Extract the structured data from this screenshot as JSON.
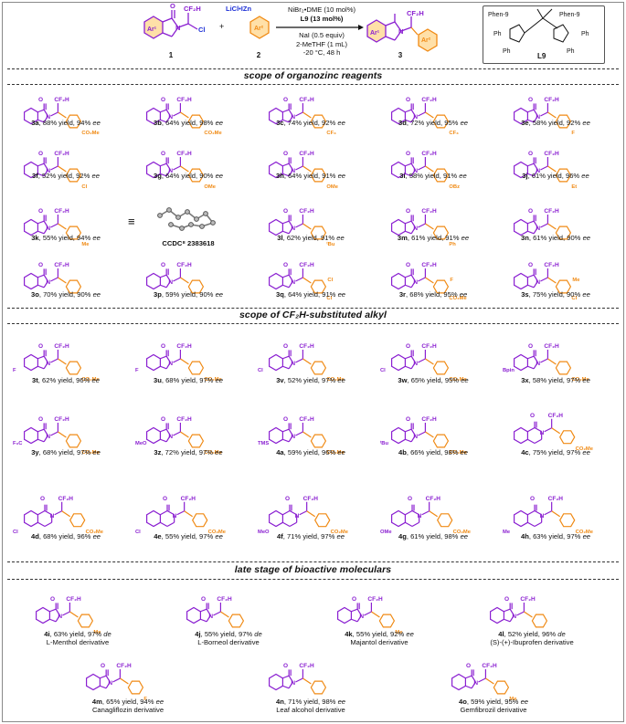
{
  "reaction": {
    "reagent_1_label": "1",
    "reagent_2_label": "2",
    "product_label": "3",
    "zinc_reagent": "LiCl•IZn",
    "plus": "+",
    "conditions": [
      "NiBr₂•DME (10 mol%)",
      "L9 (13 mol%)",
      "NaI (0.5 equiv)",
      "2-MeTHF (1 mL)",
      "-20 °C, 48 h"
    ],
    "ligand_label": "L9",
    "ligand_text": {
      "phen": "Phen-9",
      "ph": "Ph"
    }
  },
  "sections": {
    "organozinc": "scope of organozinc reagents",
    "alkyl": "scope of CF₂H-substituted alkyl",
    "bioactive": "late stage of bioactive moleculars"
  },
  "substituents": {
    "3a": "CO₂Me",
    "3b": "CO₂Me",
    "3c": "CF₃",
    "3d": "CF₃",
    "3e": "F",
    "3f": "Cl",
    "3g": "OMe",
    "3h": "OMe",
    "3i": "OBz",
    "3j": "Et",
    "3k": "Me",
    "3l": "ᵗBu",
    "3m": "Ph",
    "3r": "CO₂Me",
    "3r_2": "F",
    "3s": "Cl",
    "3s_2": "Me",
    "3q": "Cl",
    "3q_2": "Cl",
    "ccdc": "CCDC⁸ 2383618"
  },
  "compounds_row1": [
    {
      "id": "3a",
      "yield": "88% yield, 94%",
      "ee": "ee"
    },
    {
      "id": "3b",
      "yield": "64% yield, 98%",
      "ee": "ee"
    },
    {
      "id": "3c",
      "yield": "74% yield, 92%",
      "ee": "ee"
    },
    {
      "id": "3d",
      "yield": "72% yield, 95%",
      "ee": "ee"
    },
    {
      "id": "3e",
      "yield": "58% yield, 92%",
      "ee": "ee"
    }
  ],
  "compounds_row2": [
    {
      "id": "3f",
      "yield": "52% yield, 92%",
      "ee": "ee"
    },
    {
      "id": "3g",
      "yield": "64% yield, 90%",
      "ee": "ee"
    },
    {
      "id": "3h",
      "yield": "64% yield, 91%",
      "ee": "ee"
    },
    {
      "id": "3i",
      "yield": "58% yield, 91%",
      "ee": "ee"
    },
    {
      "id": "3j",
      "yield": "61% yield, 96%",
      "ee": "ee"
    }
  ],
  "compounds_row3": [
    {
      "id": "3k",
      "yield": "55% yield, 94%",
      "ee": "ee"
    },
    {
      "id": "3l",
      "yield": "62% yield, 91%",
      "ee": "ee"
    },
    {
      "id": "3m",
      "yield": "61% yield, 91%",
      "ee": "ee"
    },
    {
      "id": "3n",
      "yield": "61% yield, 90%",
      "ee": "ee"
    }
  ],
  "compounds_row4": [
    {
      "id": "3o",
      "yield": "70% yield, 90%",
      "ee": "ee"
    },
    {
      "id": "3p",
      "yield": "59% yield, 90%",
      "ee": "ee"
    },
    {
      "id": "3q",
      "yield": "64% yield, 91%",
      "ee": "ee"
    },
    {
      "id": "3r",
      "yield": "68% yield, 95%",
      "ee": "ee"
    },
    {
      "id": "3s",
      "yield": "75% yield, 90%",
      "ee": "ee"
    }
  ],
  "compounds_row5": [
    {
      "id": "3t",
      "yield": "62% yield, 96%",
      "ee": "ee"
    },
    {
      "id": "3u",
      "yield": "68% yield, 97%",
      "ee": "ee"
    },
    {
      "id": "3v",
      "yield": "52% yield, 97%",
      "ee": "ee"
    },
    {
      "id": "3w",
      "yield": "65% yield, 95%",
      "ee": "ee"
    },
    {
      "id": "3x",
      "yield": "58% yield, 97%",
      "ee": "ee"
    }
  ],
  "compounds_row6": [
    {
      "id": "3y",
      "yield": "68% yield, 97%",
      "ee": "ee"
    },
    {
      "id": "3z",
      "yield": "72% yield, 97%",
      "ee": "ee"
    },
    {
      "id": "4a",
      "yield": "59% yield, 96%",
      "ee": "ee"
    },
    {
      "id": "4b",
      "yield": "66% yield, 98%",
      "ee": "ee"
    },
    {
      "id": "4c",
      "yield": "75% yield, 97%",
      "ee": "ee"
    }
  ],
  "compounds_row7": [
    {
      "id": "4d",
      "yield": "68% yield, 96%",
      "ee": "ee"
    },
    {
      "id": "4e",
      "yield": "55% yield, 97%",
      "ee": "ee"
    },
    {
      "id": "4f",
      "yield": "71% yield, 97%",
      "ee": "ee"
    },
    {
      "id": "4g",
      "yield": "61% yield, 98%",
      "ee": "ee"
    },
    {
      "id": "4h",
      "yield": "63% yield, 97%",
      "ee": "ee"
    }
  ],
  "row5_6_7_subs": {
    "3t": "F",
    "3u": "F",
    "3v": "Cl",
    "3w": "Cl",
    "3x": "Bpin",
    "3y": "F₃C",
    "3z": "MeO",
    "4a": "TMS",
    "4b": "ᵗBu",
    "4d": "Cl",
    "4e": "Cl",
    "4f": "MeO",
    "4g": "OMe",
    "4h": "Me",
    "ester": "CO₂Me"
  },
  "bioactive_row1": [
    {
      "id": "4i",
      "yield": "63% yield, 97%",
      "sel": "de",
      "name": "L-Menthol derivative"
    },
    {
      "id": "4j",
      "yield": "55% yield, 97%",
      "sel": "de",
      "name": "L-Borneol derivative"
    },
    {
      "id": "4k",
      "yield": "55% yield, 92%",
      "sel": "ee",
      "name": "Majantol derivative"
    },
    {
      "id": "4l",
      "yield": "52% yield, 96%",
      "sel": "de",
      "name": "(S)-(+)-Ibuprofen derivative"
    }
  ],
  "bioactive_row2": [
    {
      "id": "4m",
      "yield": "65% yield, 94%",
      "sel": "ee",
      "name": "Canagliflozin derivative"
    },
    {
      "id": "4n",
      "yield": "71% yield, 98%",
      "sel": "ee",
      "name": "Leaf alcohol derivative"
    },
    {
      "id": "4o",
      "yield": "59% yield, 95%",
      "sel": "ee",
      "name": "Gemfibrozil derivative"
    }
  ],
  "bio_subs": {
    "me": "Me",
    "f": "F"
  },
  "common_labels": {
    "cf2h": "CF₂H",
    "n": "N",
    "o": "O",
    "cl": "Cl",
    "ar1": "Ar¹",
    "ar2": "Ar²"
  },
  "colors": {
    "purple": "#8a1fd1",
    "orange": "#f08a14",
    "blue": "#1c2fd6",
    "black": "#111111",
    "frame": "#8a8a8a"
  }
}
